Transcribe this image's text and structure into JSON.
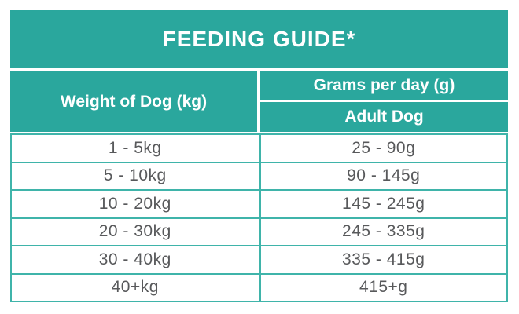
{
  "colors": {
    "teal": "#2AA79D",
    "border_teal": "#3FB4AA",
    "text_gray": "#58595B",
    "white": "#FFFFFF"
  },
  "table": {
    "title": "FEEDING GUIDE*",
    "col1_header": "Weight of Dog (kg)",
    "col2_header": "Grams per day (g)",
    "col2_subheader": "Adult Dog",
    "rows": [
      {
        "weight": "1 - 5kg",
        "grams": "25 - 90g"
      },
      {
        "weight": "5 - 10kg",
        "grams": "90 - 145g"
      },
      {
        "weight": "10 - 20kg",
        "grams": "145 - 245g"
      },
      {
        "weight": "20 - 30kg",
        "grams": "245 - 335g"
      },
      {
        "weight": "30 - 40kg",
        "grams": "335 - 415g"
      },
      {
        "weight": "40+kg",
        "grams": "415+g"
      }
    ]
  },
  "chart_data": {
    "type": "table",
    "title": "FEEDING GUIDE*",
    "columns": [
      {
        "header": "Weight of Dog (kg)"
      },
      {
        "header": "Grams per day (g)",
        "subheader": "Adult Dog"
      }
    ],
    "rows": [
      [
        "1 - 5kg",
        "25 - 90g"
      ],
      [
        "5 - 10kg",
        "90 - 145g"
      ],
      [
        "10 - 20kg",
        "145 - 245g"
      ],
      [
        "20 - 30kg",
        "245 - 335g"
      ],
      [
        "30 - 40kg",
        "335 - 415g"
      ],
      [
        "40+kg",
        "415+g"
      ]
    ],
    "rows_numeric": [
      {
        "weight_range_kg": [
          1,
          5
        ],
        "grams_range": [
          25,
          90
        ]
      },
      {
        "weight_range_kg": [
          5,
          10
        ],
        "grams_range": [
          90,
          145
        ]
      },
      {
        "weight_range_kg": [
          10,
          20
        ],
        "grams_range": [
          145,
          245
        ]
      },
      {
        "weight_range_kg": [
          20,
          30
        ],
        "grams_range": [
          245,
          335
        ]
      },
      {
        "weight_range_kg": [
          30,
          40
        ],
        "grams_range": [
          335,
          415
        ]
      },
      {
        "weight_range_kg": [
          40,
          null
        ],
        "grams_range": [
          415,
          null
        ]
      }
    ]
  }
}
